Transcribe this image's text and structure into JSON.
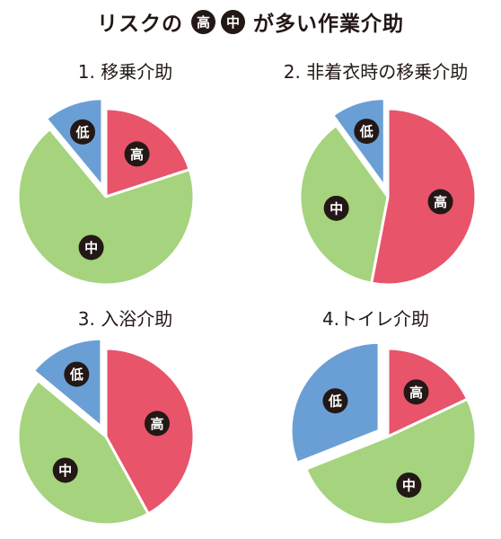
{
  "header": {
    "prefix": "リスクの",
    "badge_high": "高",
    "badge_mid": "中",
    "suffix": "が多い作業介助"
  },
  "colors": {
    "high": "#E8546A",
    "mid": "#A5D37E",
    "low": "#6A9FD6",
    "badge": "#231815"
  },
  "chart_data": [
    {
      "type": "pie",
      "title": "1. 移乗介助",
      "slices": [
        {
          "key": "high",
          "label": "高",
          "value": 20,
          "exploded": false
        },
        {
          "key": "mid",
          "label": "中",
          "value": 69,
          "exploded": false
        },
        {
          "key": "low",
          "label": "低",
          "value": 11,
          "exploded": true
        }
      ]
    },
    {
      "type": "pie",
      "title": "2. 非着衣時の移乗介助",
      "slices": [
        {
          "key": "high",
          "label": "高",
          "value": 53,
          "exploded": false
        },
        {
          "key": "mid",
          "label": "中",
          "value": 37,
          "exploded": false
        },
        {
          "key": "low",
          "label": "低",
          "value": 10,
          "exploded": true
        }
      ]
    },
    {
      "type": "pie",
      "title": "3. 入浴介助",
      "slices": [
        {
          "key": "high",
          "label": "高",
          "value": 42,
          "exploded": false
        },
        {
          "key": "mid",
          "label": "中",
          "value": 44,
          "exploded": false
        },
        {
          "key": "low",
          "label": "低",
          "value": 14,
          "exploded": true
        }
      ]
    },
    {
      "type": "pie",
      "title": "4.トイレ介助",
      "slices": [
        {
          "key": "high",
          "label": "高",
          "value": 18,
          "exploded": false
        },
        {
          "key": "mid",
          "label": "中",
          "value": 51,
          "exploded": false
        },
        {
          "key": "low",
          "label": "低",
          "value": 31,
          "exploded": true
        }
      ]
    }
  ]
}
